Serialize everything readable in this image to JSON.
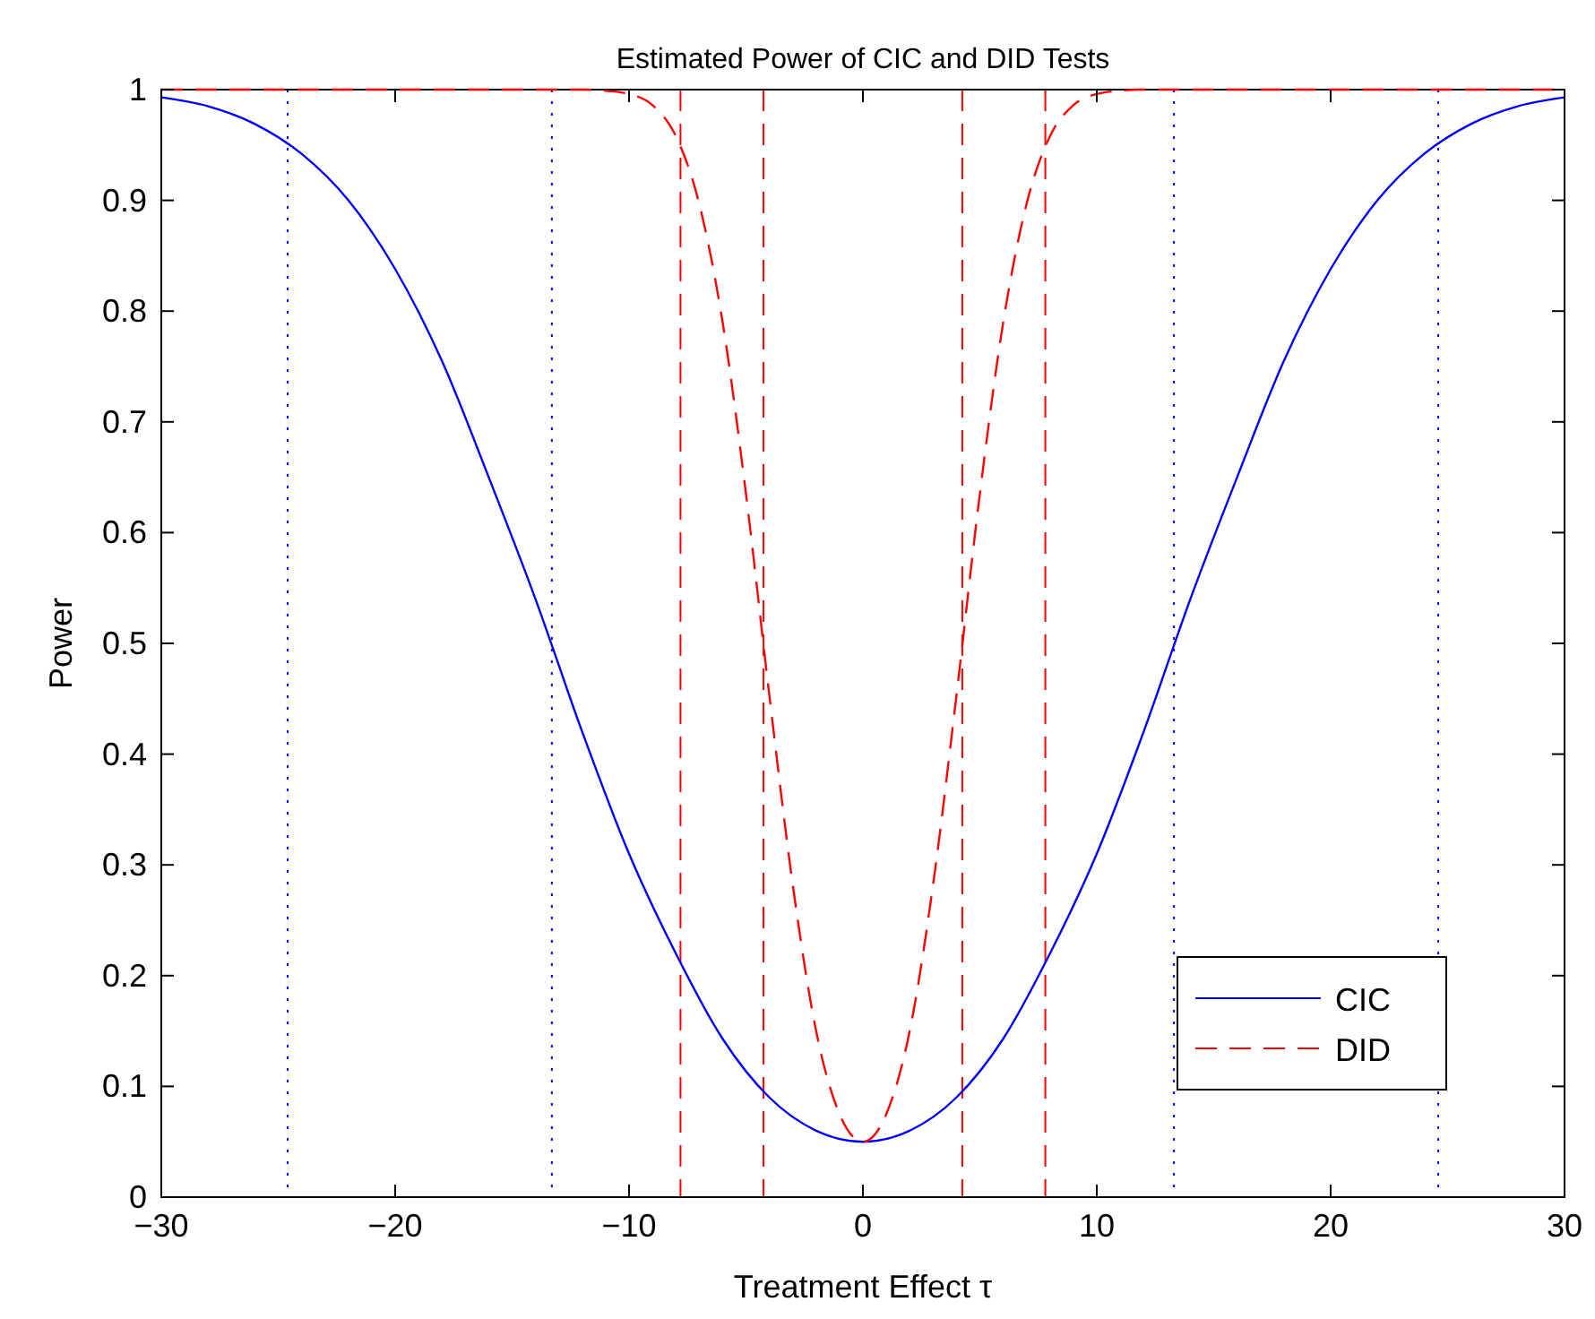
{
  "chart_data": {
    "type": "line",
    "title": "Estimated Power of CIC and DID Tests",
    "xlabel": "Treatment Effect τ",
    "ylabel": "Power",
    "xlim": [
      -30,
      30
    ],
    "ylim": [
      0,
      1
    ],
    "xticks": [
      {
        "value": -30,
        "label": "−30"
      },
      {
        "value": -20,
        "label": "−20"
      },
      {
        "value": -10,
        "label": "−10"
      },
      0,
      10,
      20,
      30
    ],
    "yticks": [
      0,
      0.1,
      0.2,
      0.3,
      0.4,
      0.5,
      0.6,
      0.7,
      0.8,
      0.9,
      1
    ],
    "grid": false,
    "legend": "bottom right",
    "series": [
      {
        "name": "CIC",
        "color": "#0000ff",
        "line_style": "solid",
        "x": [
          -30,
          -28,
          -26,
          -24,
          -22,
          -20,
          -18,
          -16,
          -14,
          -12,
          -10,
          -8,
          -6,
          -4,
          -2,
          0,
          2,
          4,
          6,
          8,
          10,
          12,
          14,
          16,
          18,
          20,
          22,
          24,
          26,
          28,
          30
        ],
        "values": [
          0.993,
          0.985,
          0.969,
          0.942,
          0.9,
          0.838,
          0.755,
          0.65,
          0.54,
          0.42,
          0.31,
          0.22,
          0.143,
          0.09,
          0.06,
          0.05,
          0.06,
          0.09,
          0.143,
          0.22,
          0.31,
          0.42,
          0.54,
          0.65,
          0.755,
          0.838,
          0.9,
          0.942,
          0.969,
          0.985,
          0.993
        ]
      },
      {
        "name": "DID",
        "color": "#ff0000",
        "line_style": "dashed",
        "x": [
          -30,
          -12,
          -11,
          -10,
          -9,
          -8,
          -7,
          -6,
          -5,
          -4,
          -3,
          -2,
          -1,
          0,
          1,
          2,
          3,
          4,
          5,
          6,
          7,
          8,
          9,
          10,
          11,
          12,
          30
        ],
        "values": [
          1,
          1,
          0.999,
          0.996,
          0.986,
          0.958,
          0.897,
          0.79,
          0.635,
          0.453,
          0.282,
          0.15,
          0.075,
          0.05,
          0.075,
          0.15,
          0.282,
          0.453,
          0.635,
          0.79,
          0.897,
          0.958,
          0.986,
          0.996,
          0.999,
          1,
          1
        ]
      }
    ],
    "ref_lines": [
      {
        "axis": "x",
        "value": -24.6,
        "color": "#0000ff",
        "line_style": "dotted"
      },
      {
        "axis": "x",
        "value": -13.3,
        "color": "#0000ff",
        "line_style": "dotted"
      },
      {
        "axis": "x",
        "value": 13.3,
        "color": "#0000ff",
        "line_style": "dotted"
      },
      {
        "axis": "x",
        "value": 24.6,
        "color": "#0000ff",
        "line_style": "dotted"
      },
      {
        "axis": "x",
        "value": -7.8,
        "color": "#ff0000",
        "line_style": "dashed"
      },
      {
        "axis": "x",
        "value": -4.25,
        "color": "#ff0000",
        "line_style": "dashed"
      },
      {
        "axis": "x",
        "value": 4.25,
        "color": "#ff0000",
        "line_style": "dashed"
      },
      {
        "axis": "x",
        "value": 7.8,
        "color": "#ff0000",
        "line_style": "dashed"
      }
    ]
  }
}
